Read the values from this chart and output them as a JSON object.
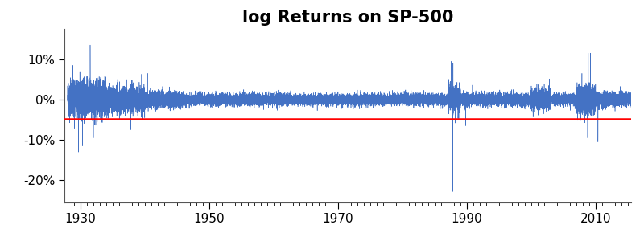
{
  "title": "log Returns on SP-500",
  "title_fontsize": 15,
  "title_fontweight": "bold",
  "line_color": "#4472C4",
  "red_line_color": "#FF0000",
  "red_line_y": -0.048,
  "ylim": [
    -0.255,
    0.175
  ],
  "yticks": [
    -0.2,
    -0.1,
    0.0,
    0.1
  ],
  "ytick_labels": [
    "-20%",
    "-10%",
    "0%",
    "10%"
  ],
  "xlim_start": 1927.5,
  "xlim_end": 2015.5,
  "xticks": [
    1930,
    1950,
    1970,
    1990,
    2010
  ],
  "line_width": 0.4,
  "seed": 42,
  "background_color": "#ffffff",
  "tick_labelsize": 11,
  "spine_color": "#555555"
}
